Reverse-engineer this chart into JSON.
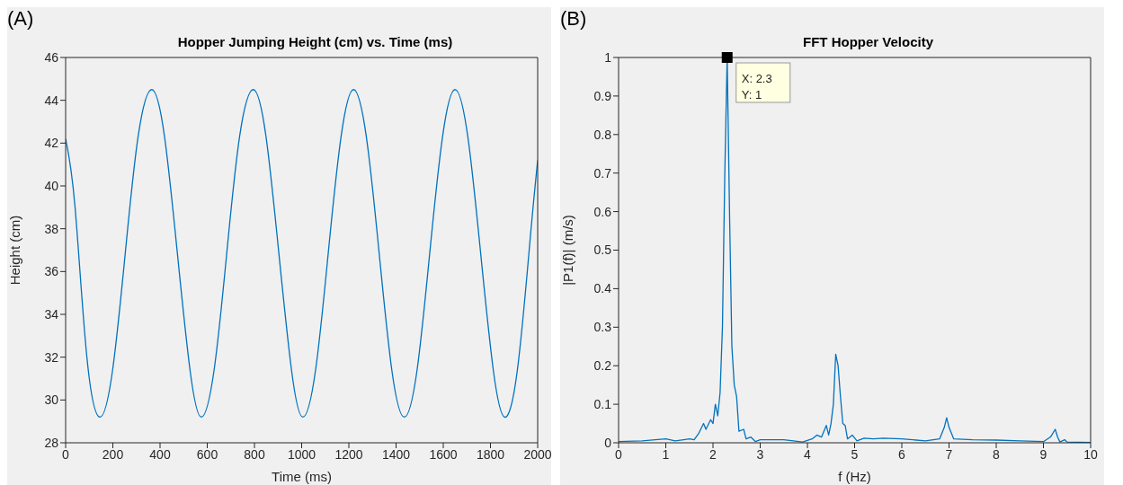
{
  "chart_data": [
    {
      "type": "line",
      "annotations": [
        "(A)"
      ],
      "title": "Hopper Jumping Height (cm) vs. Time (ms)",
      "xlabel": "Time (ms)",
      "ylabel": "Height (cm)",
      "xlim": [
        0,
        2000
      ],
      "xticks": [
        0,
        200,
        400,
        600,
        800,
        1000,
        1200,
        1400,
        1600,
        1800,
        2000
      ],
      "ylim": [
        28,
        46
      ],
      "yticks": [
        28,
        30,
        32,
        34,
        36,
        38,
        40,
        42,
        44,
        46
      ],
      "marker": "none",
      "line_style": "solid",
      "series": [
        {
          "color": "#0072bd",
          "x": [
            0,
            40,
            90,
            145,
            199,
            253,
            307,
            365,
            419,
            473,
            527,
            575,
            629,
            683,
            737,
            795,
            849,
            903,
            957,
            1005,
            1059,
            1113,
            1167,
            1220,
            1274,
            1328,
            1382,
            1435,
            1489,
            1543,
            1597,
            1650,
            1704,
            1758,
            1812,
            1860,
            1914,
            1968,
            2000
          ],
          "values": [
            42.2,
            39.0,
            32.0,
            29.2,
            31.4,
            36.9,
            42.3,
            44.5,
            42.3,
            36.9,
            31.4,
            29.2,
            31.4,
            36.9,
            42.3,
            44.5,
            42.3,
            36.9,
            31.4,
            29.2,
            31.4,
            36.9,
            42.3,
            44.5,
            42.3,
            36.9,
            31.4,
            29.2,
            31.4,
            36.9,
            42.3,
            44.5,
            42.3,
            36.9,
            31.4,
            29.2,
            31.4,
            37.5,
            41.2
          ]
        }
      ]
    },
    {
      "type": "line",
      "annotations": [
        "(B)",
        {
          "text": "X: 2.3\nY: 1",
          "x": 2.3,
          "y": 1
        }
      ],
      "title": "FFT Hopper Velocity",
      "xlabel": "f (Hz)",
      "ylabel": "|P1(f)| (m/s)",
      "xlim": [
        0,
        10
      ],
      "xticks": [
        0,
        1,
        2,
        3,
        4,
        5,
        6,
        7,
        8,
        9,
        10
      ],
      "ylim": [
        0,
        1
      ],
      "yticks": [
        0,
        0.1,
        0.2,
        0.3,
        0.4,
        0.5,
        0.6,
        0.7,
        0.8,
        0.9,
        1
      ],
      "marker": "none",
      "line_style": "solid",
      "series": [
        {
          "color": "#0072bd",
          "x": [
            0,
            0.5,
            1,
            1.2,
            1.5,
            1.6,
            1.7,
            1.8,
            1.85,
            1.95,
            2,
            2.05,
            2.1,
            2.15,
            2.2,
            2.25,
            2.3,
            2.35,
            2.4,
            2.45,
            2.5,
            2.55,
            2.65,
            2.7,
            2.8,
            2.9,
            3,
            3.5,
            3.9,
            4.1,
            4.2,
            4.3,
            4.4,
            4.45,
            4.5,
            4.55,
            4.6,
            4.65,
            4.7,
            4.75,
            4.8,
            4.85,
            4.95,
            5.05,
            5.2,
            5.4,
            5.6,
            6,
            6.5,
            6.8,
            6.9,
            6.95,
            7,
            7.1,
            7.5,
            8,
            8.5,
            9,
            9.15,
            9.25,
            9.3,
            9.35,
            9.45,
            9.5,
            10
          ],
          "values": [
            0.003,
            0.005,
            0.01,
            0.005,
            0.01,
            0.008,
            0.025,
            0.05,
            0.035,
            0.06,
            0.05,
            0.1,
            0.07,
            0.13,
            0.3,
            0.7,
            1,
            0.6,
            0.25,
            0.15,
            0.12,
            0.03,
            0.035,
            0.01,
            0.015,
            0.003,
            0.008,
            0.008,
            0.002,
            0.01,
            0.02,
            0.015,
            0.045,
            0.02,
            0.05,
            0.1,
            0.23,
            0.2,
            0.12,
            0.05,
            0.045,
            0.01,
            0.02,
            0.005,
            0.012,
            0.01,
            0.012,
            0.01,
            0.005,
            0.01,
            0.04,
            0.065,
            0.04,
            0.01,
            0.008,
            0.007,
            0.005,
            0.003,
            0.015,
            0.035,
            0.015,
            0.002,
            0.008,
            0.002,
            0.001
          ]
        }
      ]
    }
  ]
}
